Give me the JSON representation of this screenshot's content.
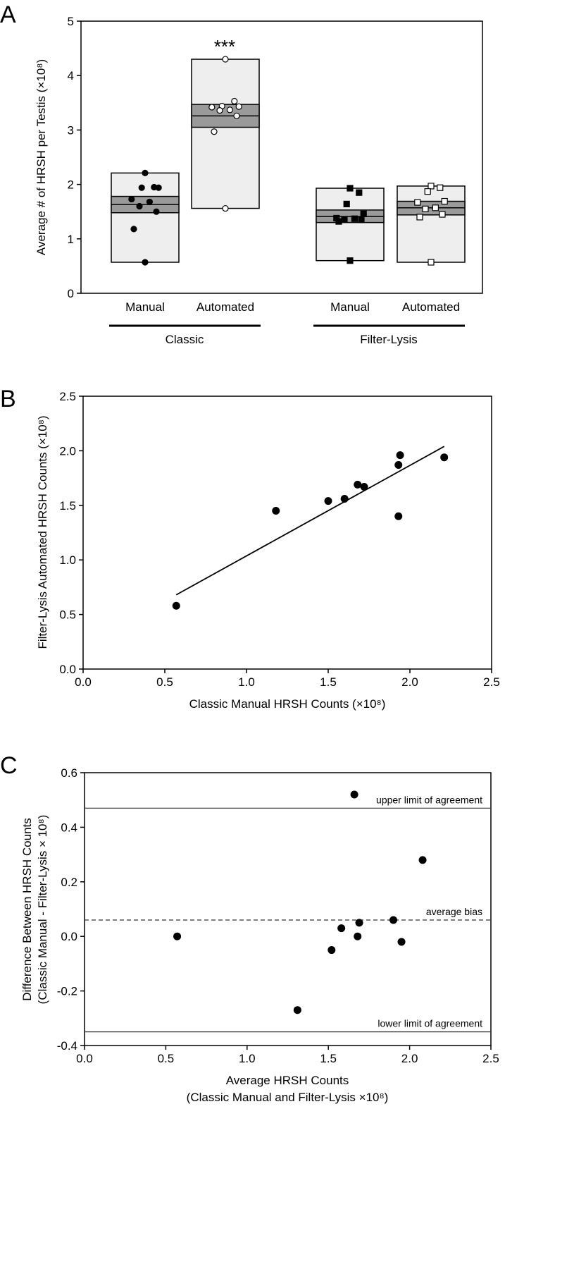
{
  "chart_data": [
    {
      "type": "box",
      "panel_label": "A",
      "ylabel": "Average # of HRSH per Testis (×10⁸)",
      "ylim": [
        0,
        5
      ],
      "yticks": [
        "0",
        "1",
        "2",
        "3",
        "4",
        "5"
      ],
      "group_labels": [
        "Classic",
        "Filter-Lysis"
      ],
      "significance": "***",
      "boxes": [
        {
          "group": 0,
          "label": "Manual",
          "marker": "filled-circle",
          "min": 0.57,
          "max": 2.21,
          "mean": 1.63,
          "ci": [
            1.48,
            1.78
          ],
          "points": [
            2.21,
            1.95,
            1.94,
            1.94,
            1.73,
            1.68,
            1.6,
            1.5,
            1.18,
            0.57
          ]
        },
        {
          "group": 0,
          "label": "Automated",
          "marker": "open-circle",
          "min": 1.56,
          "max": 4.3,
          "mean": 3.26,
          "ci": [
            3.05,
            3.47
          ],
          "points": [
            4.3,
            3.53,
            3.44,
            3.43,
            3.42,
            3.37,
            3.36,
            3.26,
            2.97,
            1.56
          ]
        },
        {
          "group": 1,
          "label": "Manual",
          "marker": "filled-square",
          "min": 0.6,
          "max": 1.93,
          "mean": 1.41,
          "ci": [
            1.3,
            1.53
          ],
          "points": [
            1.93,
            1.85,
            1.64,
            1.46,
            1.38,
            1.37,
            1.36,
            1.35,
            1.32,
            0.6
          ]
        },
        {
          "group": 1,
          "label": "Automated",
          "marker": "open-square",
          "min": 0.57,
          "max": 1.97,
          "mean": 1.57,
          "ci": [
            1.44,
            1.69
          ],
          "points": [
            1.97,
            1.94,
            1.87,
            1.69,
            1.67,
            1.57,
            1.55,
            1.45,
            1.4,
            0.57
          ]
        }
      ]
    },
    {
      "type": "scatter",
      "panel_label": "B",
      "xlabel": "Classic Manual HRSH Counts (×10⁸)",
      "ylabel": "Filter-Lysis Automated HRSH Counts (×10⁸)",
      "xlim": [
        0,
        2.5
      ],
      "ylim": [
        0,
        2.5
      ],
      "xticks": [
        "0.0",
        "0.5",
        "1.0",
        "1.5",
        "2.0",
        "2.5"
      ],
      "yticks": [
        "0.0",
        "0.5",
        "1.0",
        "1.5",
        "2.0",
        "2.5"
      ],
      "x": [
        0.57,
        1.18,
        1.5,
        1.6,
        1.68,
        1.72,
        1.93,
        1.94,
        1.93,
        2.21
      ],
      "y": [
        0.58,
        1.45,
        1.54,
        1.56,
        1.69,
        1.67,
        1.4,
        1.96,
        1.87,
        1.94
      ],
      "fit_line": {
        "x": [
          0.57,
          2.21
        ],
        "y": [
          0.68,
          2.04
        ]
      }
    },
    {
      "type": "scatter",
      "panel_label": "C",
      "xlabel_lines": [
        "Average HRSH Counts",
        "(Classic Manual and Filter-Lysis ×10⁸)"
      ],
      "ylabel_lines": [
        "Difference Between HRSH Counts",
        "(Classic Manual - Filter-Lysis × 10⁸)"
      ],
      "xlim": [
        0,
        2.5
      ],
      "ylim": [
        -0.4,
        0.6
      ],
      "xticks": [
        "0.0",
        "0.5",
        "1.0",
        "1.5",
        "2.0",
        "2.5"
      ],
      "yticks": [
        "-0.4",
        "-0.2",
        "0.0",
        "0.2",
        "0.4",
        "0.6"
      ],
      "x": [
        0.57,
        1.31,
        1.52,
        1.58,
        1.66,
        1.68,
        1.69,
        1.9,
        1.95,
        2.08
      ],
      "y": [
        0.0,
        -0.27,
        -0.05,
        0.03,
        0.52,
        0.0,
        0.05,
        0.06,
        -0.02,
        0.28
      ],
      "reference_lines": [
        {
          "label": "upper limit of agreement",
          "y": 0.47,
          "style": "solid"
        },
        {
          "label": "average bias",
          "y": 0.06,
          "style": "dashed"
        },
        {
          "label": "lower limit of agreement",
          "y": -0.35,
          "style": "solid"
        }
      ]
    }
  ]
}
